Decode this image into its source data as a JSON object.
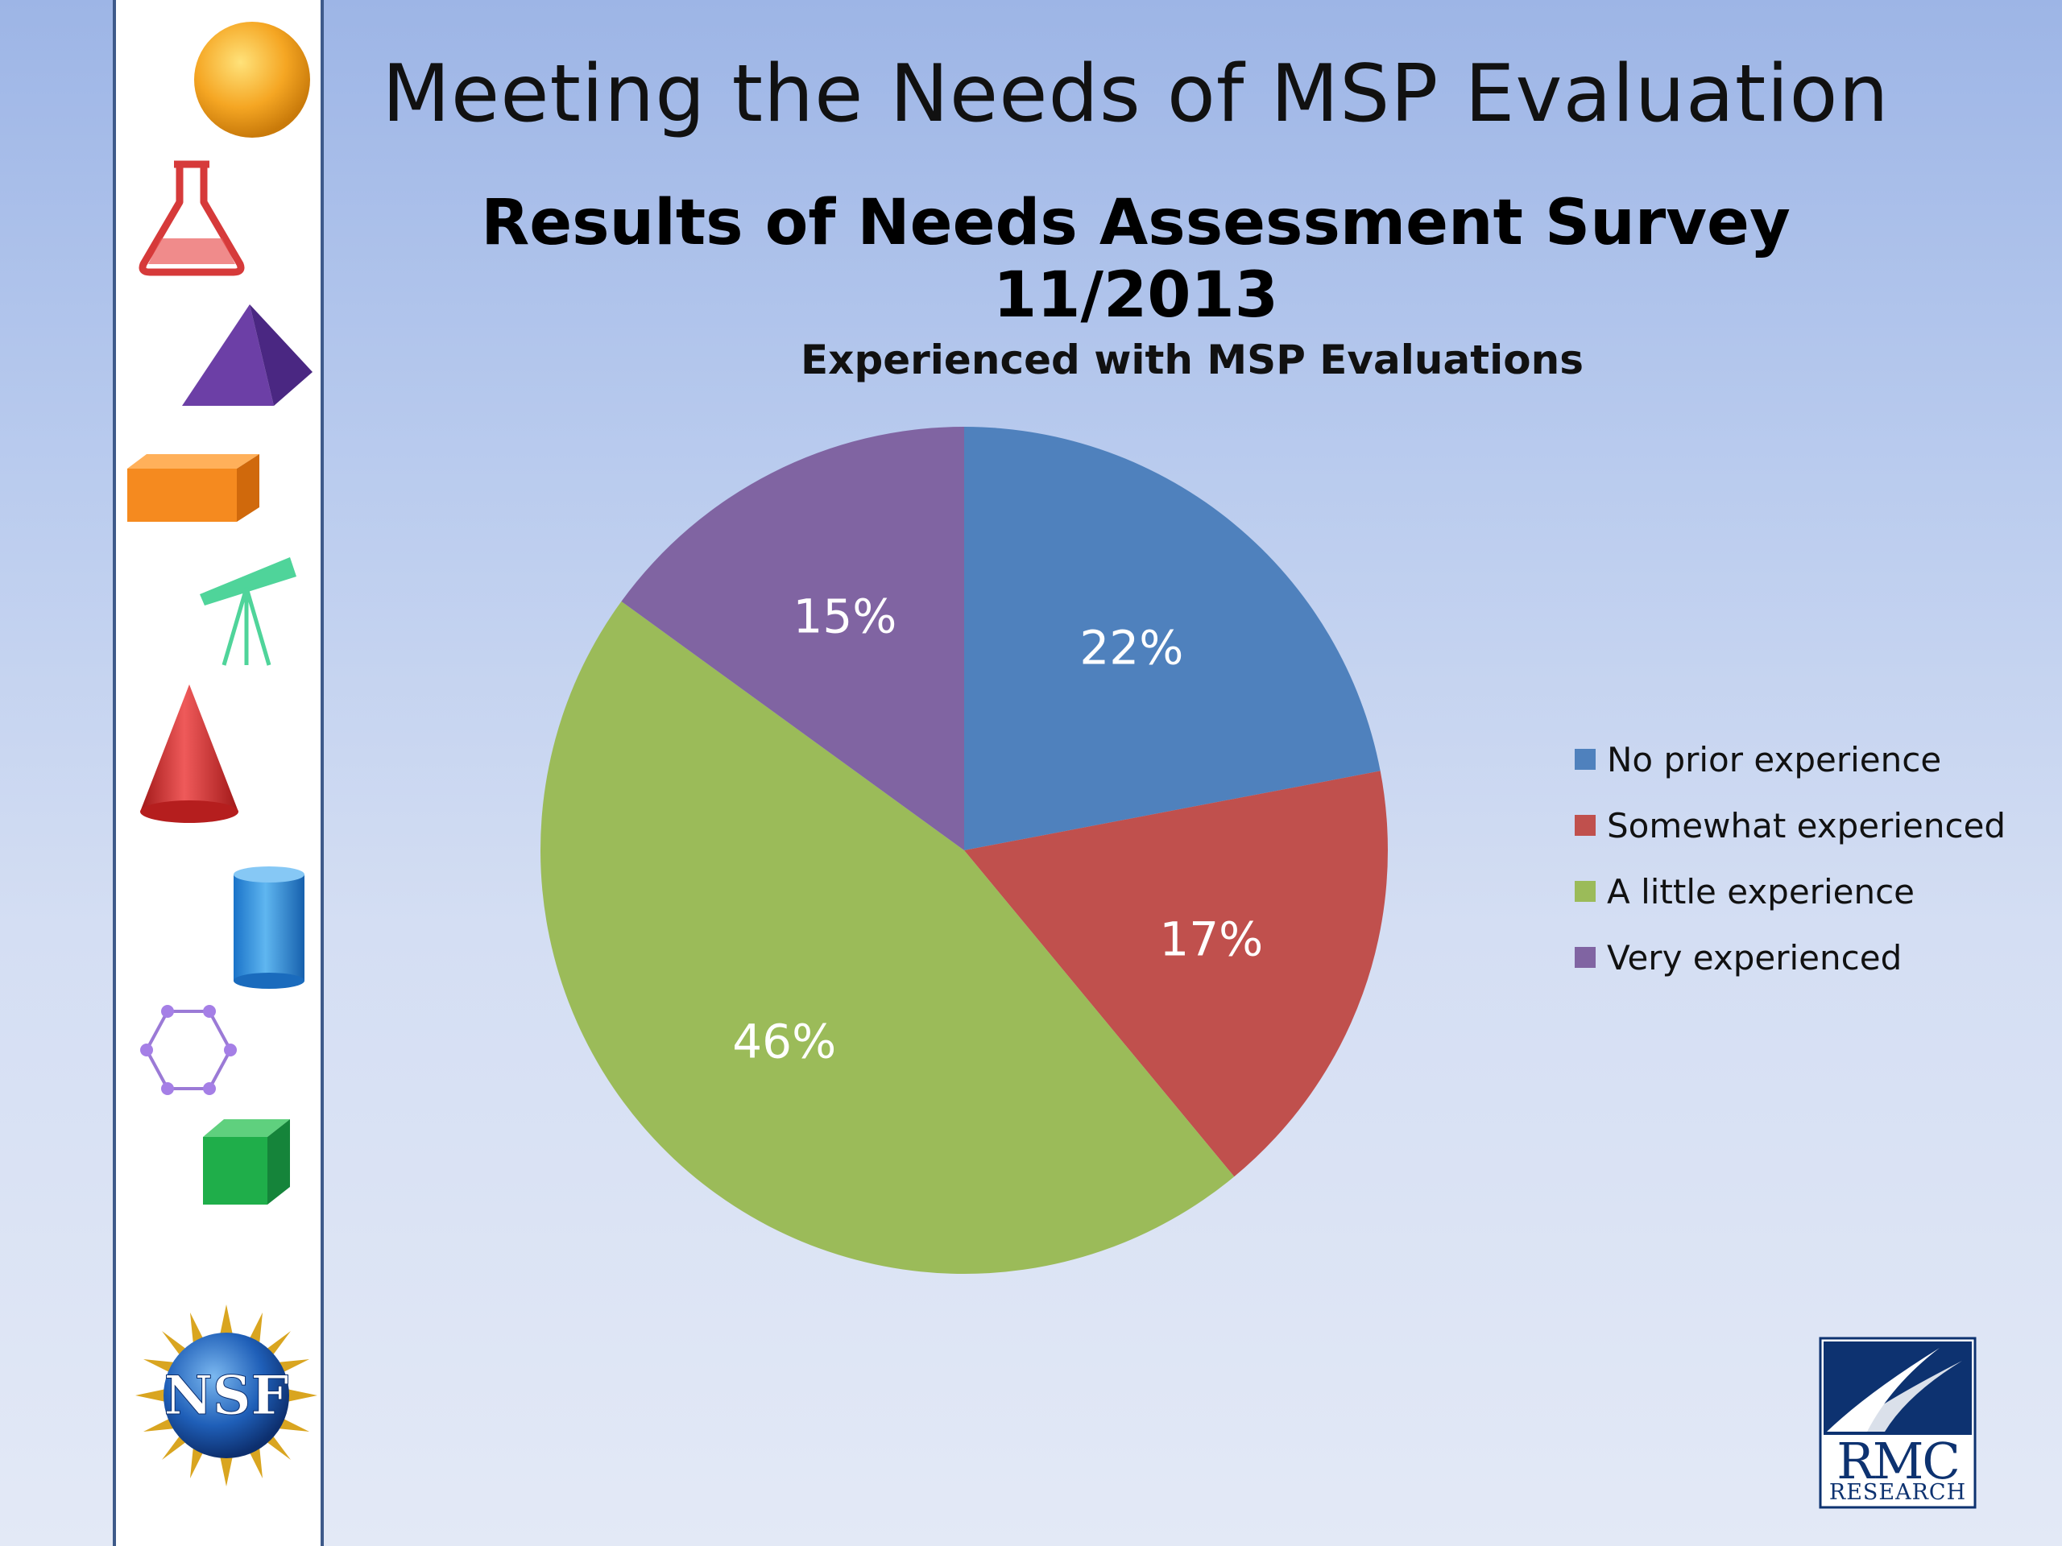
{
  "slide": {
    "title": "Meeting the Needs of MSP Evaluation",
    "subtitle": "Results of Needs Assessment Survey 11/2013"
  },
  "sidebar": {
    "icons": [
      "orange-sphere-icon",
      "flask-icon",
      "purple-pyramid-icon",
      "orange-box-icon",
      "telescope-icon",
      "red-cone-icon",
      "blue-cylinder-icon",
      "hexagon-molecule-icon",
      "green-cube-icon",
      "nsf-logo"
    ],
    "nsf_logo_text": "NSF"
  },
  "logos": {
    "rmc_top": "RMC",
    "rmc_bottom": "RESEARCH"
  },
  "chart_data": {
    "type": "pie",
    "title": "Experienced with MSP Evaluations",
    "categories": [
      "No prior experience",
      "Somewhat experienced",
      "A little experience",
      "Very experienced"
    ],
    "values": [
      22,
      17,
      46,
      15
    ],
    "labels": [
      "22%",
      "17%",
      "46%",
      "15%"
    ],
    "colors": [
      "#4f81bd",
      "#c0504d",
      "#9bbb59",
      "#8064a2"
    ],
    "start_angle": "12 o'clock",
    "direction": "clockwise",
    "legend_position": "right"
  }
}
